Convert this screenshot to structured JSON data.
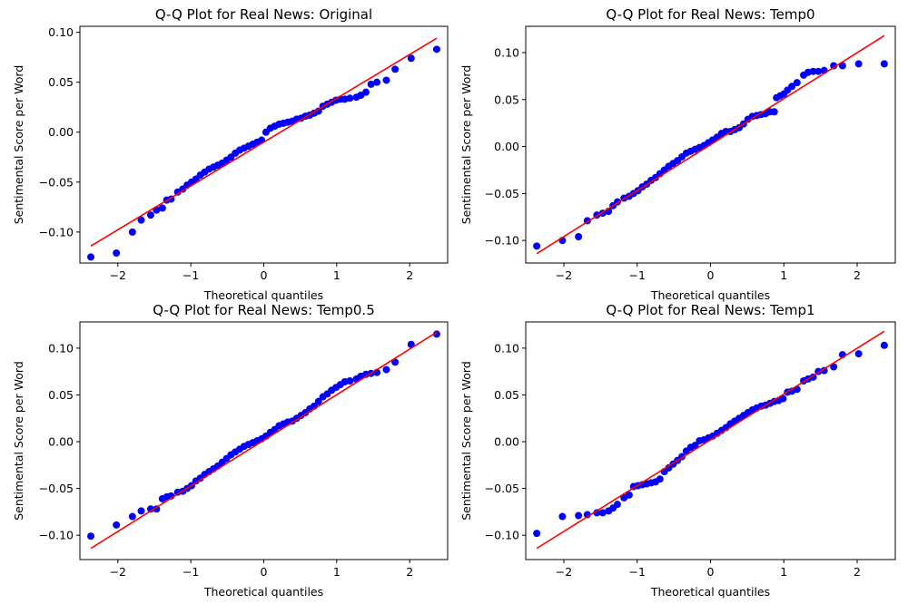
{
  "colors": {
    "points": "#0000ff",
    "line": "#ff0000",
    "axes": "#000000"
  },
  "chart_data": [
    {
      "type": "scatter",
      "title": "Q-Q Plot for Real News: Original",
      "xlabel": "Theoretical quantiles",
      "ylabel": "Sentimental Score per Word",
      "xlim": [
        -2.52,
        2.52
      ],
      "ylim": [
        -0.131,
        0.106
      ],
      "xticks": [
        -2,
        -1,
        0,
        1,
        2
      ],
      "xtick_labels": [
        "−2",
        "−1",
        "0",
        "1",
        "2"
      ],
      "yticks": [
        -0.1,
        -0.05,
        0.0,
        0.05,
        0.1
      ],
      "ytick_labels": [
        "−0.10",
        "−0.05",
        "0.00",
        "0.05",
        "0.10"
      ],
      "fit_line": {
        "x": [
          -2.37,
          2.37
        ],
        "y": [
          -0.114,
          0.094
        ]
      },
      "series": [
        {
          "x": [
            -2.37,
            -2.02,
            -1.8,
            -1.68,
            -1.55,
            -1.47,
            -1.39,
            -1.33,
            -1.27,
            -1.18,
            -1.11,
            -1.05,
            -0.99,
            -0.93,
            -0.87,
            -0.81,
            -0.75,
            -0.69,
            -0.63,
            -0.57,
            -0.51,
            -0.45,
            -0.39,
            -0.33,
            -0.27,
            -0.21,
            -0.15,
            -0.09,
            -0.03,
            0.03,
            0.09,
            0.15,
            0.21,
            0.27,
            0.33,
            0.39,
            0.45,
            0.51,
            0.57,
            0.63,
            0.69,
            0.75,
            0.81,
            0.87,
            0.93,
            0.99,
            1.05,
            1.11,
            1.18,
            1.27,
            1.33,
            1.4,
            1.47,
            1.55,
            1.68,
            1.8,
            2.02,
            2.37
          ],
          "y": [
            -0.125,
            -0.121,
            -0.1,
            -0.088,
            -0.083,
            -0.078,
            -0.076,
            -0.068,
            -0.067,
            -0.06,
            -0.057,
            -0.053,
            -0.05,
            -0.047,
            -0.043,
            -0.04,
            -0.037,
            -0.035,
            -0.033,
            -0.031,
            -0.028,
            -0.025,
            -0.021,
            -0.018,
            -0.016,
            -0.014,
            -0.012,
            -0.01,
            -0.008,
            0.0,
            0.004,
            0.006,
            0.008,
            0.009,
            0.01,
            0.011,
            0.013,
            0.014,
            0.016,
            0.017,
            0.019,
            0.021,
            0.026,
            0.028,
            0.03,
            0.032,
            0.033,
            0.033,
            0.034,
            0.035,
            0.037,
            0.04,
            0.048,
            0.05,
            0.052,
            0.063,
            0.074,
            0.083
          ]
        }
      ]
    },
    {
      "type": "scatter",
      "title": "Q-Q Plot for Real News: Temp0",
      "xlabel": "Theoretical quantiles",
      "ylabel": "Sentimental Score per Word",
      "xlim": [
        -2.52,
        2.52
      ],
      "ylim": [
        -0.124,
        0.128
      ],
      "xticks": [
        -2,
        -1,
        0,
        1,
        2
      ],
      "xtick_labels": [
        "−2",
        "−1",
        "0",
        "1",
        "2"
      ],
      "yticks": [
        -0.1,
        -0.05,
        0.0,
        0.05,
        0.1
      ],
      "ytick_labels": [
        "−0.10",
        "−0.05",
        "0.00",
        "0.05",
        "0.10"
      ],
      "fit_line": {
        "x": [
          -2.37,
          2.37
        ],
        "y": [
          -0.114,
          0.118
        ]
      },
      "series": [
        {
          "x": [
            -2.37,
            -2.02,
            -1.8,
            -1.68,
            -1.55,
            -1.47,
            -1.39,
            -1.33,
            -1.27,
            -1.18,
            -1.11,
            -1.05,
            -0.99,
            -0.93,
            -0.87,
            -0.81,
            -0.75,
            -0.69,
            -0.63,
            -0.57,
            -0.51,
            -0.45,
            -0.39,
            -0.33,
            -0.27,
            -0.21,
            -0.15,
            -0.09,
            -0.03,
            0.03,
            0.09,
            0.15,
            0.21,
            0.27,
            0.33,
            0.39,
            0.45,
            0.51,
            0.57,
            0.63,
            0.69,
            0.75,
            0.81,
            0.87,
            0.9,
            0.95,
            1.0,
            1.05,
            1.11,
            1.18,
            1.27,
            1.33,
            1.4,
            1.47,
            1.55,
            1.68,
            1.8,
            2.02,
            2.37
          ],
          "y": [
            -0.106,
            -0.1,
            -0.096,
            -0.079,
            -0.073,
            -0.071,
            -0.069,
            -0.063,
            -0.059,
            -0.055,
            -0.053,
            -0.05,
            -0.047,
            -0.043,
            -0.04,
            -0.036,
            -0.033,
            -0.029,
            -0.025,
            -0.021,
            -0.018,
            -0.015,
            -0.011,
            -0.007,
            -0.005,
            -0.003,
            -0.001,
            0.001,
            0.004,
            0.007,
            0.01,
            0.014,
            0.016,
            0.016,
            0.018,
            0.02,
            0.024,
            0.029,
            0.032,
            0.033,
            0.034,
            0.035,
            0.037,
            0.037,
            0.052,
            0.054,
            0.056,
            0.06,
            0.064,
            0.068,
            0.076,
            0.079,
            0.08,
            0.08,
            0.081,
            0.086,
            0.086,
            0.088,
            0.088
          ]
        }
      ]
    },
    {
      "type": "scatter",
      "title": "Q-Q Plot for Real News: Temp0.5",
      "xlabel": "Theoretical quantiles",
      "ylabel": "Sentimental Score per Word",
      "xlim": [
        -2.52,
        2.52
      ],
      "ylim": [
        -0.126,
        0.128
      ],
      "xticks": [
        -2,
        -1,
        0,
        1,
        2
      ],
      "xtick_labels": [
        "−2",
        "−1",
        "0",
        "1",
        "2"
      ],
      "yticks": [
        -0.1,
        -0.05,
        0.0,
        0.05,
        0.1
      ],
      "ytick_labels": [
        "−0.10",
        "−0.05",
        "0.00",
        "0.05",
        "0.10"
      ],
      "fit_line": {
        "x": [
          -2.37,
          2.37
        ],
        "y": [
          -0.114,
          0.117
        ]
      },
      "series": [
        {
          "x": [
            -2.37,
            -2.02,
            -1.8,
            -1.68,
            -1.55,
            -1.47,
            -1.39,
            -1.33,
            -1.27,
            -1.18,
            -1.11,
            -1.05,
            -0.99,
            -0.93,
            -0.87,
            -0.81,
            -0.75,
            -0.69,
            -0.63,
            -0.57,
            -0.51,
            -0.45,
            -0.39,
            -0.33,
            -0.27,
            -0.21,
            -0.15,
            -0.09,
            -0.03,
            0.03,
            0.09,
            0.15,
            0.21,
            0.27,
            0.33,
            0.39,
            0.45,
            0.51,
            0.57,
            0.63,
            0.69,
            0.75,
            0.81,
            0.87,
            0.93,
            0.99,
            1.05,
            1.11,
            1.18,
            1.27,
            1.33,
            1.4,
            1.47,
            1.55,
            1.68,
            1.8,
            2.02,
            2.37
          ],
          "y": [
            -0.101,
            -0.089,
            -0.08,
            -0.074,
            -0.072,
            -0.072,
            -0.061,
            -0.059,
            -0.058,
            -0.054,
            -0.053,
            -0.05,
            -0.047,
            -0.042,
            -0.039,
            -0.035,
            -0.032,
            -0.029,
            -0.026,
            -0.022,
            -0.018,
            -0.014,
            -0.011,
            -0.008,
            -0.005,
            -0.003,
            -0.001,
            0.001,
            0.003,
            0.006,
            0.01,
            0.013,
            0.017,
            0.019,
            0.021,
            0.022,
            0.025,
            0.028,
            0.031,
            0.035,
            0.038,
            0.043,
            0.048,
            0.051,
            0.055,
            0.058,
            0.061,
            0.064,
            0.065,
            0.067,
            0.07,
            0.072,
            0.073,
            0.074,
            0.077,
            0.085,
            0.104,
            0.115
          ]
        }
      ]
    },
    {
      "type": "scatter",
      "title": "Q-Q Plot for Real News: Temp1",
      "xlabel": "Theoretical quantiles",
      "ylabel": "Sentimental Score per Word",
      "xlim": [
        -2.52,
        2.52
      ],
      "ylim": [
        -0.126,
        0.128
      ],
      "xticks": [
        -2,
        -1,
        0,
        1,
        2
      ],
      "xtick_labels": [
        "−2",
        "−1",
        "0",
        "1",
        "2"
      ],
      "yticks": [
        -0.1,
        -0.05,
        0.0,
        0.05,
        0.1
      ],
      "ytick_labels": [
        "−0.10",
        "−0.05",
        "0.00",
        "0.05",
        "0.10"
      ],
      "fit_line": {
        "x": [
          -2.37,
          2.37
        ],
        "y": [
          -0.114,
          0.118
        ]
      },
      "series": [
        {
          "x": [
            -2.37,
            -2.02,
            -1.8,
            -1.68,
            -1.55,
            -1.47,
            -1.39,
            -1.33,
            -1.27,
            -1.18,
            -1.11,
            -1.05,
            -0.99,
            -0.93,
            -0.87,
            -0.81,
            -0.75,
            -0.69,
            -0.63,
            -0.57,
            -0.51,
            -0.45,
            -0.39,
            -0.33,
            -0.27,
            -0.21,
            -0.15,
            -0.09,
            -0.03,
            0.03,
            0.09,
            0.15,
            0.21,
            0.27,
            0.33,
            0.39,
            0.45,
            0.51,
            0.57,
            0.63,
            0.69,
            0.75,
            0.81,
            0.87,
            0.93,
            0.99,
            1.05,
            1.11,
            1.18,
            1.27,
            1.33,
            1.4,
            1.47,
            1.55,
            1.68,
            1.8,
            2.02,
            2.37
          ],
          "y": [
            -0.098,
            -0.08,
            -0.079,
            -0.078,
            -0.076,
            -0.076,
            -0.074,
            -0.071,
            -0.067,
            -0.06,
            -0.057,
            -0.048,
            -0.047,
            -0.046,
            -0.045,
            -0.044,
            -0.043,
            -0.04,
            -0.032,
            -0.028,
            -0.024,
            -0.02,
            -0.016,
            -0.01,
            -0.006,
            -0.004,
            0.001,
            0.002,
            0.004,
            0.006,
            0.009,
            0.012,
            0.015,
            0.019,
            0.022,
            0.025,
            0.028,
            0.031,
            0.034,
            0.036,
            0.038,
            0.039,
            0.041,
            0.043,
            0.044,
            0.046,
            0.053,
            0.054,
            0.056,
            0.065,
            0.067,
            0.069,
            0.075,
            0.076,
            0.08,
            0.093,
            0.094,
            0.103
          ]
        }
      ]
    }
  ]
}
